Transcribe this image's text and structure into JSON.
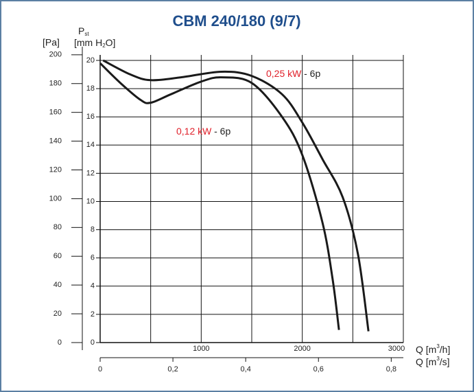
{
  "chart_data": {
    "type": "line",
    "title": "CBM 240/180 (9/7)",
    "ylabel": {
      "main": "P",
      "sub": "st"
    },
    "y2label": "[Pa]",
    "ylabel_units": [
      "[mm H",
      "2",
      "O]"
    ],
    "xlabel": [
      "Q [m",
      "3",
      "/h]"
    ],
    "x2label": [
      "Q [m",
      "3",
      "/s]"
    ],
    "xlim": [
      0,
      3000
    ],
    "xticks": [
      1000,
      2000,
      3000
    ],
    "xgrid": [
      0,
      500,
      1000,
      1500,
      2000,
      2500,
      3000
    ],
    "ylim": [
      0,
      20
    ],
    "yticks": [
      0,
      2,
      4,
      6,
      8,
      10,
      12,
      14,
      16,
      18,
      20
    ],
    "y2lim": [
      0,
      196.1
    ],
    "y2ticks": [
      0,
      20,
      40,
      60,
      80,
      100,
      120,
      140,
      160,
      180,
      200
    ],
    "x2lim": [
      0,
      0.8333
    ],
    "x2ticks": [
      0,
      {
        "value": 0.2,
        "label": "0,2"
      },
      {
        "value": 0.4,
        "label": "0,4"
      },
      {
        "value": 0.6,
        "label": "0,6"
      },
      {
        "value": 0.8,
        "label": "0,8"
      }
    ],
    "grid": true,
    "series": [
      {
        "name": "0,25 kW",
        "poles": "- 6p",
        "color": "#1a1a1a",
        "label_color": "#e0202a",
        "x": [
          30,
          300,
          500,
          800,
          1200,
          1500,
          1800,
          2000,
          2200,
          2400,
          2550,
          2655
        ],
        "values": [
          20.0,
          19.0,
          18.6,
          18.8,
          19.2,
          18.9,
          17.6,
          15.6,
          13.0,
          10.3,
          6.3,
          0.8
        ]
      },
      {
        "name": "0,12 kW",
        "poles": "- 6p",
        "color": "#1a1a1a",
        "label_color": "#e0202a",
        "x": [
          0,
          200,
          400,
          500,
          700,
          1000,
          1200,
          1500,
          1800,
          2000,
          2200,
          2300,
          2363
        ],
        "values": [
          19.8,
          18.4,
          17.2,
          17.0,
          17.6,
          18.5,
          18.8,
          18.4,
          16.0,
          13.3,
          8.5,
          4.5,
          0.9
        ]
      }
    ]
  }
}
